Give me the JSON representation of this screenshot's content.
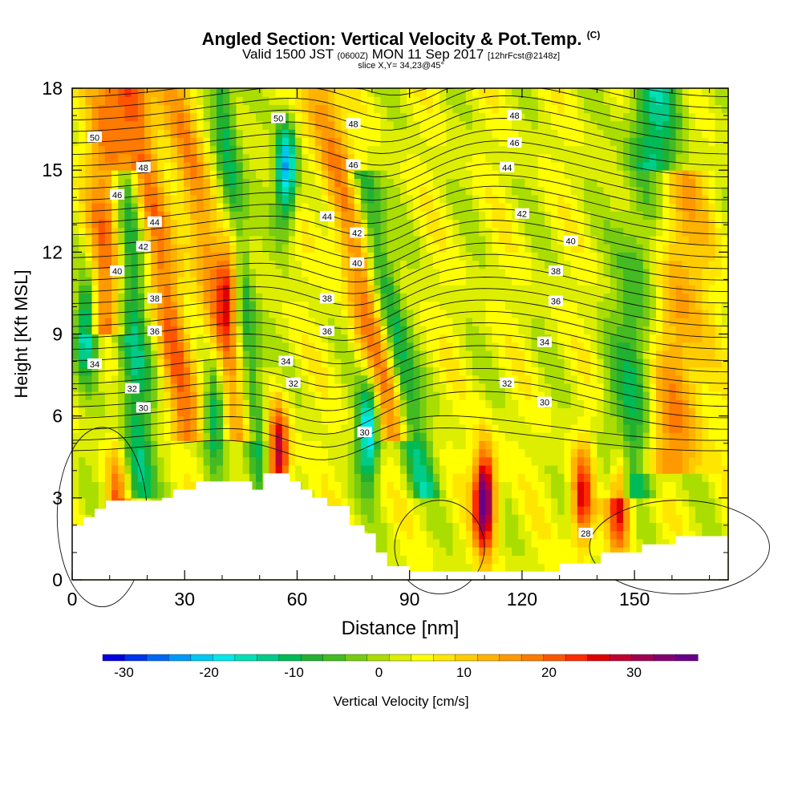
{
  "header": {
    "title": "Angled Section: Vertical Velocity & Pot.Temp.",
    "title_tag": "(C)",
    "valid_prefix": "Valid 1500 JST",
    "valid_zulu": "(0600Z)",
    "valid_date": "MON 11 Sep 2017",
    "forecast_tag": "[12hrFcst@2148z]",
    "slice_label": "slice X,Y= 34,23@45°"
  },
  "colors": {
    "frame": "#000000",
    "terrain": "#ffffff",
    "contour": "#111111"
  },
  "chart_data": {
    "type": "heatmap",
    "xlabel": "Distance [nm]",
    "ylabel": "Height [Kft MSL]",
    "xlim": [
      0,
      175
    ],
    "ylim": [
      0,
      18
    ],
    "x_ticks": [
      0,
      30,
      60,
      90,
      120,
      150
    ],
    "y_ticks": [
      0,
      3,
      6,
      9,
      12,
      15,
      18
    ],
    "grid": false,
    "field": "Vertical Velocity",
    "colorbar": {
      "label": "Vertical Velocity [cm/s]",
      "placement": "bottom",
      "range": [
        -32.5,
        37.5
      ],
      "step": 2.5,
      "tick_values": [
        -30,
        -20,
        -10,
        0,
        10,
        20,
        30
      ],
      "tick_labels": [
        "-30",
        "-20",
        "-10",
        "0",
        "10",
        "20",
        "30"
      ],
      "colors": [
        "#0000e0",
        "#0033ee",
        "#0066f5",
        "#0099f8",
        "#00c8f0",
        "#00e8e8",
        "#00e0b4",
        "#00cc88",
        "#00bb55",
        "#22b030",
        "#44bb22",
        "#77cc11",
        "#aadd00",
        "#ddee00",
        "#ffff00",
        "#ffe600",
        "#ffcc00",
        "#ffb300",
        "#ff9900",
        "#ff7a00",
        "#ff5500",
        "#ff2a00",
        "#e00000",
        "#c00030",
        "#a00050",
        "#800070",
        "#660088"
      ]
    },
    "potential_temperature_labels": [
      "50",
      "48",
      "46",
      "44",
      "42",
      "40",
      "38",
      "36",
      "34",
      "32",
      "30",
      "28"
    ],
    "terrain_profile": [
      [
        0,
        2.0
      ],
      [
        3,
        2.0
      ],
      [
        3,
        2.3
      ],
      [
        6,
        2.3
      ],
      [
        6,
        2.6
      ],
      [
        9,
        2.6
      ],
      [
        9,
        2.9
      ],
      [
        24,
        2.9
      ],
      [
        24,
        3.0
      ],
      [
        27,
        3.0
      ],
      [
        27,
        3.3
      ],
      [
        33,
        3.3
      ],
      [
        33,
        3.6
      ],
      [
        48,
        3.6
      ],
      [
        48,
        3.3
      ],
      [
        51,
        3.3
      ],
      [
        51,
        3.9
      ],
      [
        58,
        3.9
      ],
      [
        58,
        3.6
      ],
      [
        61,
        3.6
      ],
      [
        61,
        3.3
      ],
      [
        64,
        3.3
      ],
      [
        64,
        3.0
      ],
      [
        68,
        3.0
      ],
      [
        68,
        2.7
      ],
      [
        74,
        2.7
      ],
      [
        74,
        2.0
      ],
      [
        78,
        2.0
      ],
      [
        78,
        1.7
      ],
      [
        81,
        1.7
      ],
      [
        81,
        1.0
      ],
      [
        84,
        1.0
      ],
      [
        84,
        0.5
      ],
      [
        90,
        0.5
      ],
      [
        90,
        0.3
      ],
      [
        130,
        0.3
      ],
      [
        130,
        0.6
      ],
      [
        141,
        0.6
      ],
      [
        141,
        1.0
      ],
      [
        152,
        1.0
      ],
      [
        152,
        1.3
      ],
      [
        161,
        1.3
      ],
      [
        161,
        1.6
      ],
      [
        175,
        1.6
      ]
    ],
    "updraft_cores": [
      {
        "x": 110,
        "z": 3,
        "w": 37
      },
      {
        "x": 55,
        "z": 4.5,
        "w": 30
      },
      {
        "x": 42,
        "z": 11,
        "w": 22
      },
      {
        "x": 136,
        "z": 3,
        "w": 24
      },
      {
        "x": 146,
        "z": 3,
        "w": 26
      },
      {
        "x": 12,
        "z": 3,
        "w": 18
      }
    ],
    "downdraft_cores": [
      {
        "x": 57,
        "z": 15,
        "w": -24
      },
      {
        "x": 79,
        "z": 5.5,
        "w": -22
      },
      {
        "x": 4,
        "z": 9.5,
        "w": -20
      },
      {
        "x": 38,
        "z": 6,
        "w": -14
      }
    ]
  }
}
